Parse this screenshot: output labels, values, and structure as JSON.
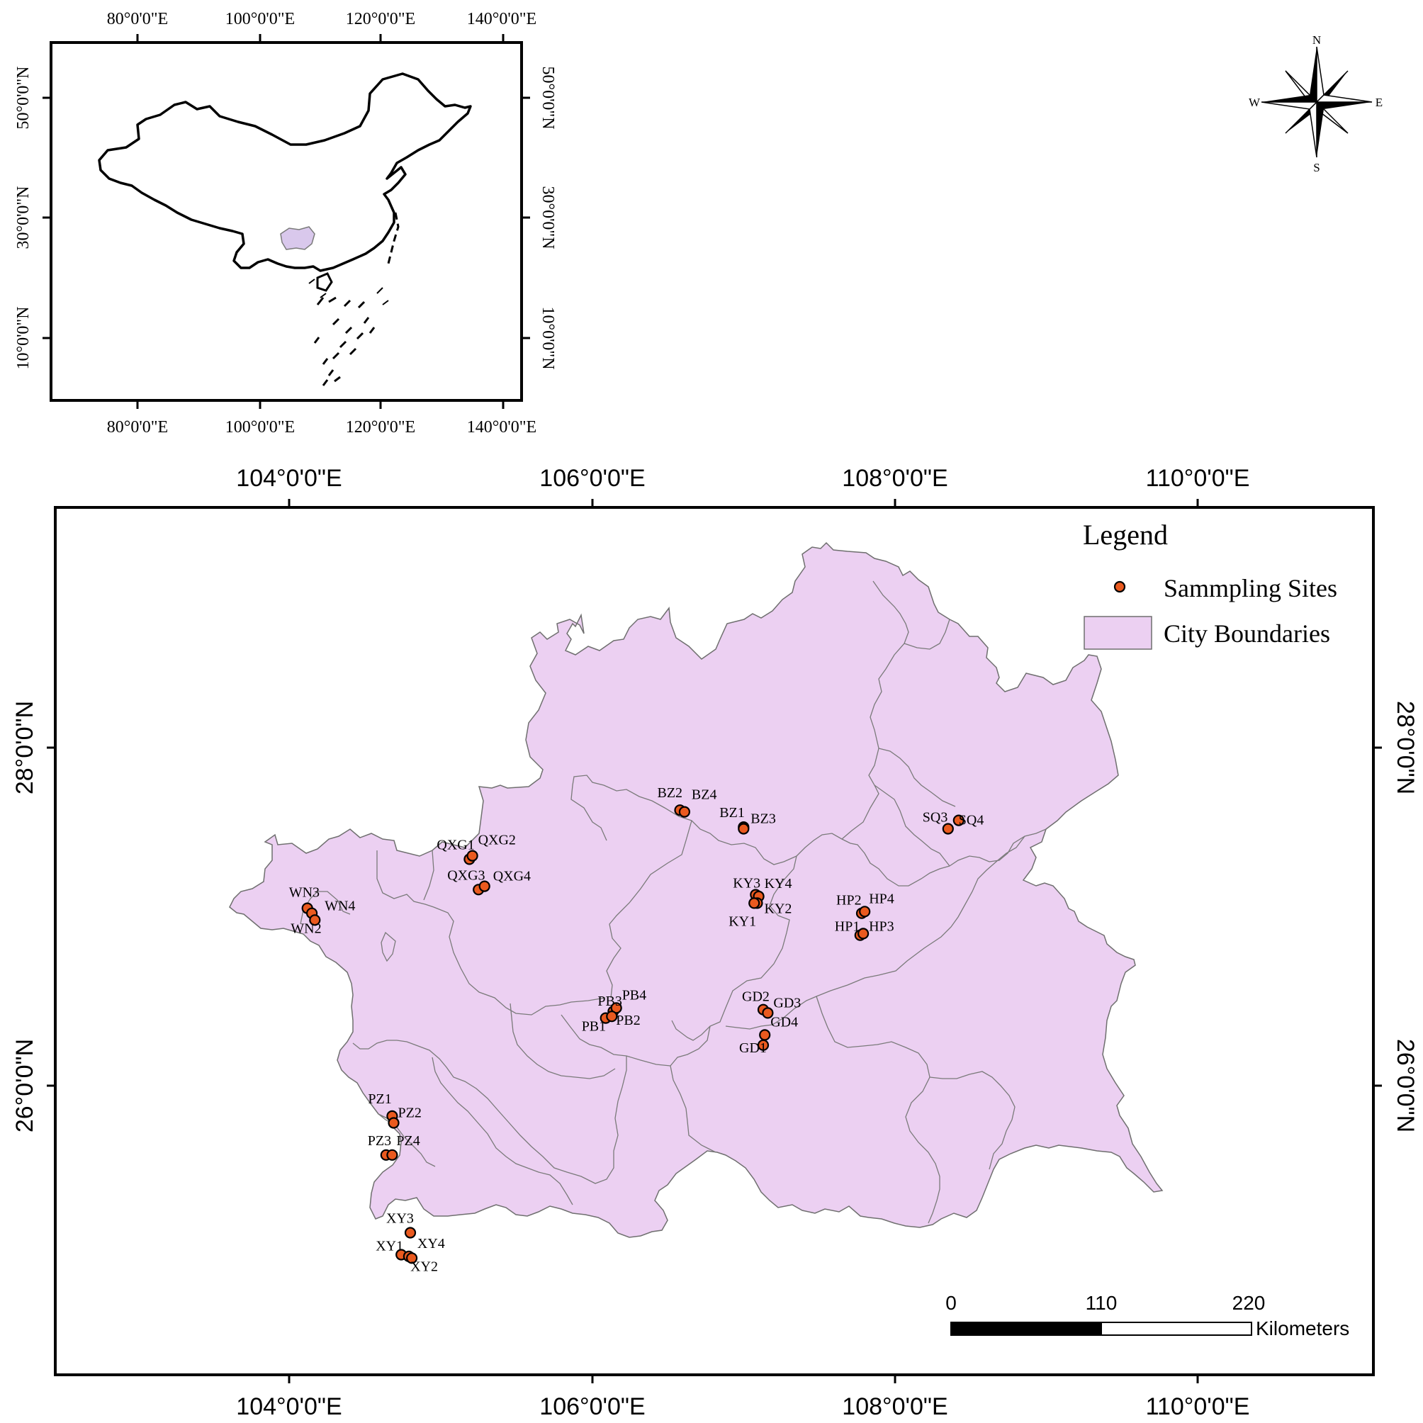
{
  "colors": {
    "region_fill": "#ecd0f2",
    "site_fill": "#ea5a1f",
    "highlight_fill": "#d9c8ec"
  },
  "inset": {
    "lon_labels": [
      "80°0'0\"E",
      "100°0'0\"E",
      "120°0'0\"E",
      "140°0'0\"E"
    ],
    "lat_labels": [
      "50°0'0\"N",
      "30°0'0\"N",
      "10°0'0\"N"
    ]
  },
  "main_map": {
    "lon_labels": [
      "104°0'0\"E",
      "106°0'0\"E",
      "108°0'0\"E",
      "110°0'0\"E"
    ],
    "lat_labels": [
      "28°0'0\"N",
      "26°0'0\"N"
    ]
  },
  "north_arrow": {
    "icon": "compass-rose-icon",
    "n": "N",
    "s": "S",
    "e": "E",
    "w": "W"
  },
  "legend": {
    "title": "Legend",
    "items": [
      {
        "label": "Sammpling Sites"
      },
      {
        "label": "City Boundaries"
      }
    ]
  },
  "scale_bar": {
    "ticks": [
      "0",
      "110",
      "220"
    ],
    "unit": "Kilometers"
  },
  "sites": [
    {
      "id": "WN3",
      "lon": 104.12,
      "lat": 27.05
    },
    {
      "id": "WN4",
      "lon": 104.15,
      "lat": 27.02
    },
    {
      "id": "WN2",
      "lon": 104.17,
      "lat": 26.98
    },
    {
      "id": "QXG1",
      "lon": 105.19,
      "lat": 27.34
    },
    {
      "id": "QXG2",
      "lon": 105.21,
      "lat": 27.36
    },
    {
      "id": "QXG3",
      "lon": 105.25,
      "lat": 27.16
    },
    {
      "id": "QXG4",
      "lon": 105.29,
      "lat": 27.18
    },
    {
      "id": "BZ2",
      "lon": 106.58,
      "lat": 27.63
    },
    {
      "id": "BZ4",
      "lon": 106.61,
      "lat": 27.62
    },
    {
      "id": "BZ1",
      "lon": 107.0,
      "lat": 27.53
    },
    {
      "id": "BZ3",
      "lon": 107.0,
      "lat": 27.52
    },
    {
      "id": "SQ3",
      "lon": 108.35,
      "lat": 27.52
    },
    {
      "id": "SQ4",
      "lon": 108.42,
      "lat": 27.57
    },
    {
      "id": "KY3",
      "lon": 107.08,
      "lat": 27.13
    },
    {
      "id": "KY4",
      "lon": 107.1,
      "lat": 27.12
    },
    {
      "id": "KY2",
      "lon": 107.09,
      "lat": 27.08
    },
    {
      "id": "KY1",
      "lon": 107.07,
      "lat": 27.08
    },
    {
      "id": "HP2",
      "lon": 107.78,
      "lat": 27.02
    },
    {
      "id": "HP4",
      "lon": 107.8,
      "lat": 27.03
    },
    {
      "id": "HP1",
      "lon": 107.77,
      "lat": 26.89
    },
    {
      "id": "HP3",
      "lon": 107.79,
      "lat": 26.9
    },
    {
      "id": "PB3",
      "lon": 106.14,
      "lat": 26.44
    },
    {
      "id": "PB4",
      "lon": 106.16,
      "lat": 26.46
    },
    {
      "id": "PB1",
      "lon": 106.09,
      "lat": 26.4
    },
    {
      "id": "PB2",
      "lon": 106.13,
      "lat": 26.41
    },
    {
      "id": "GD2",
      "lon": 107.13,
      "lat": 26.45
    },
    {
      "id": "GD3",
      "lon": 107.16,
      "lat": 26.43
    },
    {
      "id": "GD1",
      "lon": 107.13,
      "lat": 26.24
    },
    {
      "id": "GD4",
      "lon": 107.14,
      "lat": 26.3
    },
    {
      "id": "PZ1",
      "lon": 104.68,
      "lat": 25.82
    },
    {
      "id": "PZ2",
      "lon": 104.69,
      "lat": 25.78
    },
    {
      "id": "PZ3",
      "lon": 104.64,
      "lat": 25.59
    },
    {
      "id": "PZ4",
      "lon": 104.68,
      "lat": 25.59
    },
    {
      "id": "XY3",
      "lon": 104.8,
      "lat": 25.13
    },
    {
      "id": "XY1",
      "lon": 104.74,
      "lat": 25.0
    },
    {
      "id": "XY4",
      "lon": 104.79,
      "lat": 24.99
    },
    {
      "id": "XY2",
      "lon": 104.81,
      "lat": 24.98
    }
  ]
}
